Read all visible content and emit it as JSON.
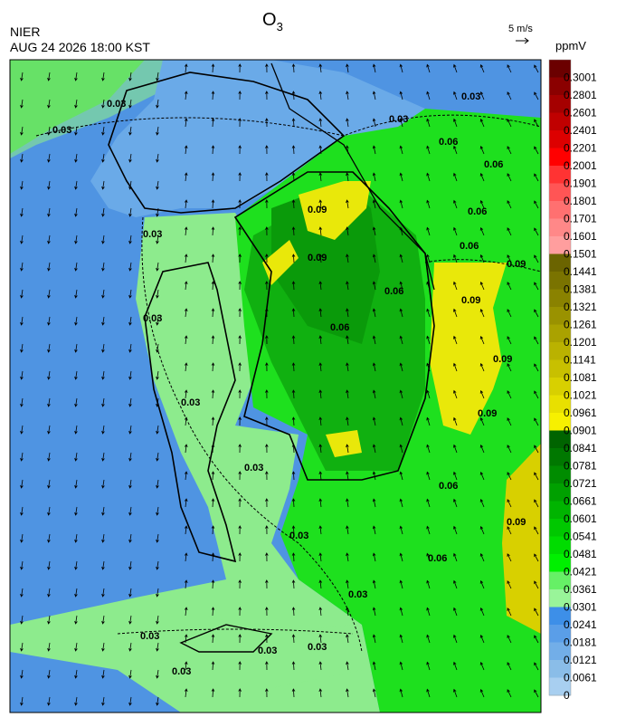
{
  "header": {
    "title": "O",
    "title_sub": "3",
    "agency": "NIER",
    "datetime": "AUG 24 2026 18:00 KST",
    "wind_scale": "5 m/s"
  },
  "colorbar": {
    "unit": "ppmV",
    "labels": [
      0.3001,
      0.2801,
      0.2601,
      0.2401,
      0.2201,
      0.2001,
      0.1901,
      0.1801,
      0.1701,
      0.1601,
      0.1501,
      0.1441,
      0.1381,
      0.1321,
      0.1261,
      0.1201,
      0.1141,
      0.1081,
      0.1021,
      0.0961,
      0.0901,
      0.0841,
      0.0781,
      0.0721,
      0.0661,
      0.0601,
      0.0541,
      0.0481,
      0.0421,
      0.0361,
      0.0301,
      0.0241,
      0.0181,
      0.0121,
      0.0061,
      0
    ],
    "colors": [
      "#6b0000",
      "#8b0000",
      "#a50000",
      "#c00000",
      "#dd0000",
      "#ff0000",
      "#ff3333",
      "#ff5555",
      "#ff7070",
      "#ff8888",
      "#ff9e9e",
      "#6b6400",
      "#7a7300",
      "#8a8200",
      "#9a9200",
      "#aaa200",
      "#bab200",
      "#c8c000",
      "#d8d000",
      "#e8e000",
      "#f7f000",
      "#006400",
      "#007800",
      "#008c00",
      "#00a000",
      "#00b400",
      "#00c800",
      "#00dc00",
      "#00f000",
      "#66f066",
      "#99f599",
      "#3d8fe8",
      "#5a9ee8",
      "#72aee8",
      "#8abde8",
      "#a8cff0"
    ]
  },
  "contour_labels": [
    "0.03",
    "0.03",
    "0.03",
    "0.03",
    "0.06",
    "0.06",
    "0.06",
    "0.06",
    "0.09",
    "0.09",
    "0.09",
    "0.09",
    "0.09",
    "0.09",
    "0.06",
    "0.06",
    "0.03",
    "0.03",
    "0.03",
    "0.03",
    "0.03",
    "0.03",
    "0.03",
    "0.03",
    "0.03",
    "0.03",
    "0.06",
    "0.06",
    "0.09"
  ]
}
